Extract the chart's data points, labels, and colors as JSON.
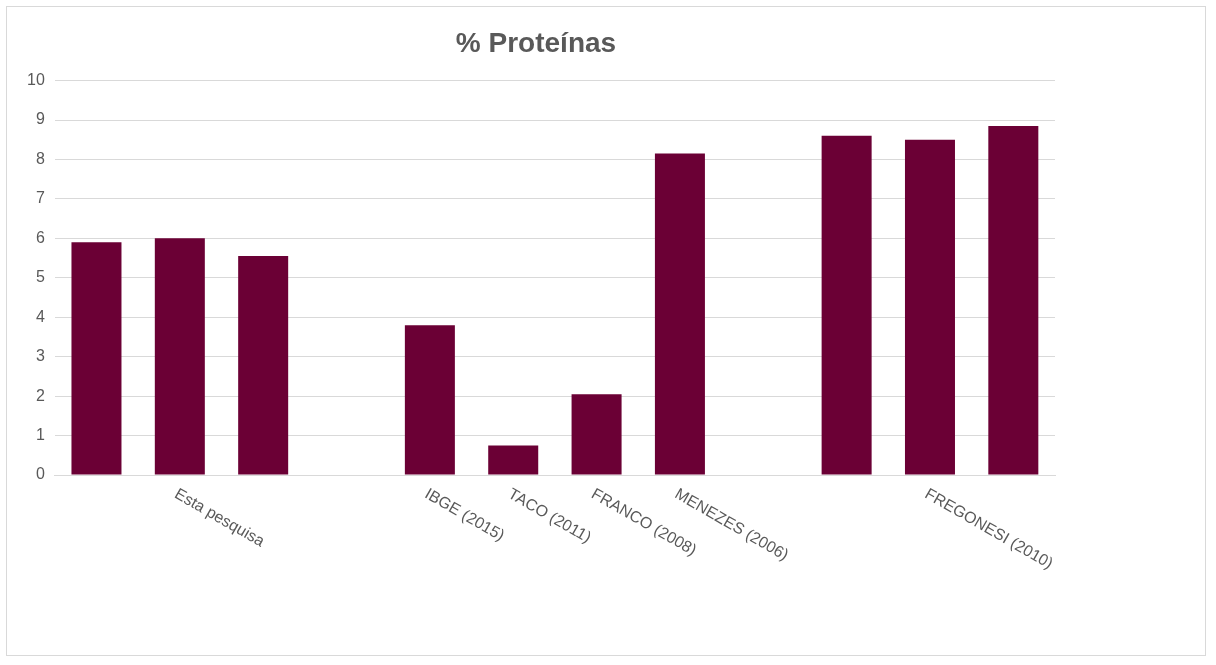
{
  "chart_data": {
    "type": "bar",
    "title": "% Proteínas",
    "categories": [
      null,
      "Esta pesquisa",
      null,
      null,
      "IBGE (2015)",
      "TACO (2011)",
      "FRANCO (2008)",
      "MENEZES (2006)",
      null,
      null,
      "FREGONESI (2010)",
      null
    ],
    "values": [
      5.9,
      6.0,
      5.55,
      null,
      3.8,
      0.75,
      2.05,
      8.15,
      null,
      8.6,
      8.5,
      8.85
    ],
    "color": "#6b0035",
    "ylim": [
      0,
      10
    ],
    "yticks": [
      0,
      1,
      2,
      3,
      4,
      5,
      6,
      7,
      8,
      9,
      10
    ],
    "grid": "y",
    "legend": false
  }
}
